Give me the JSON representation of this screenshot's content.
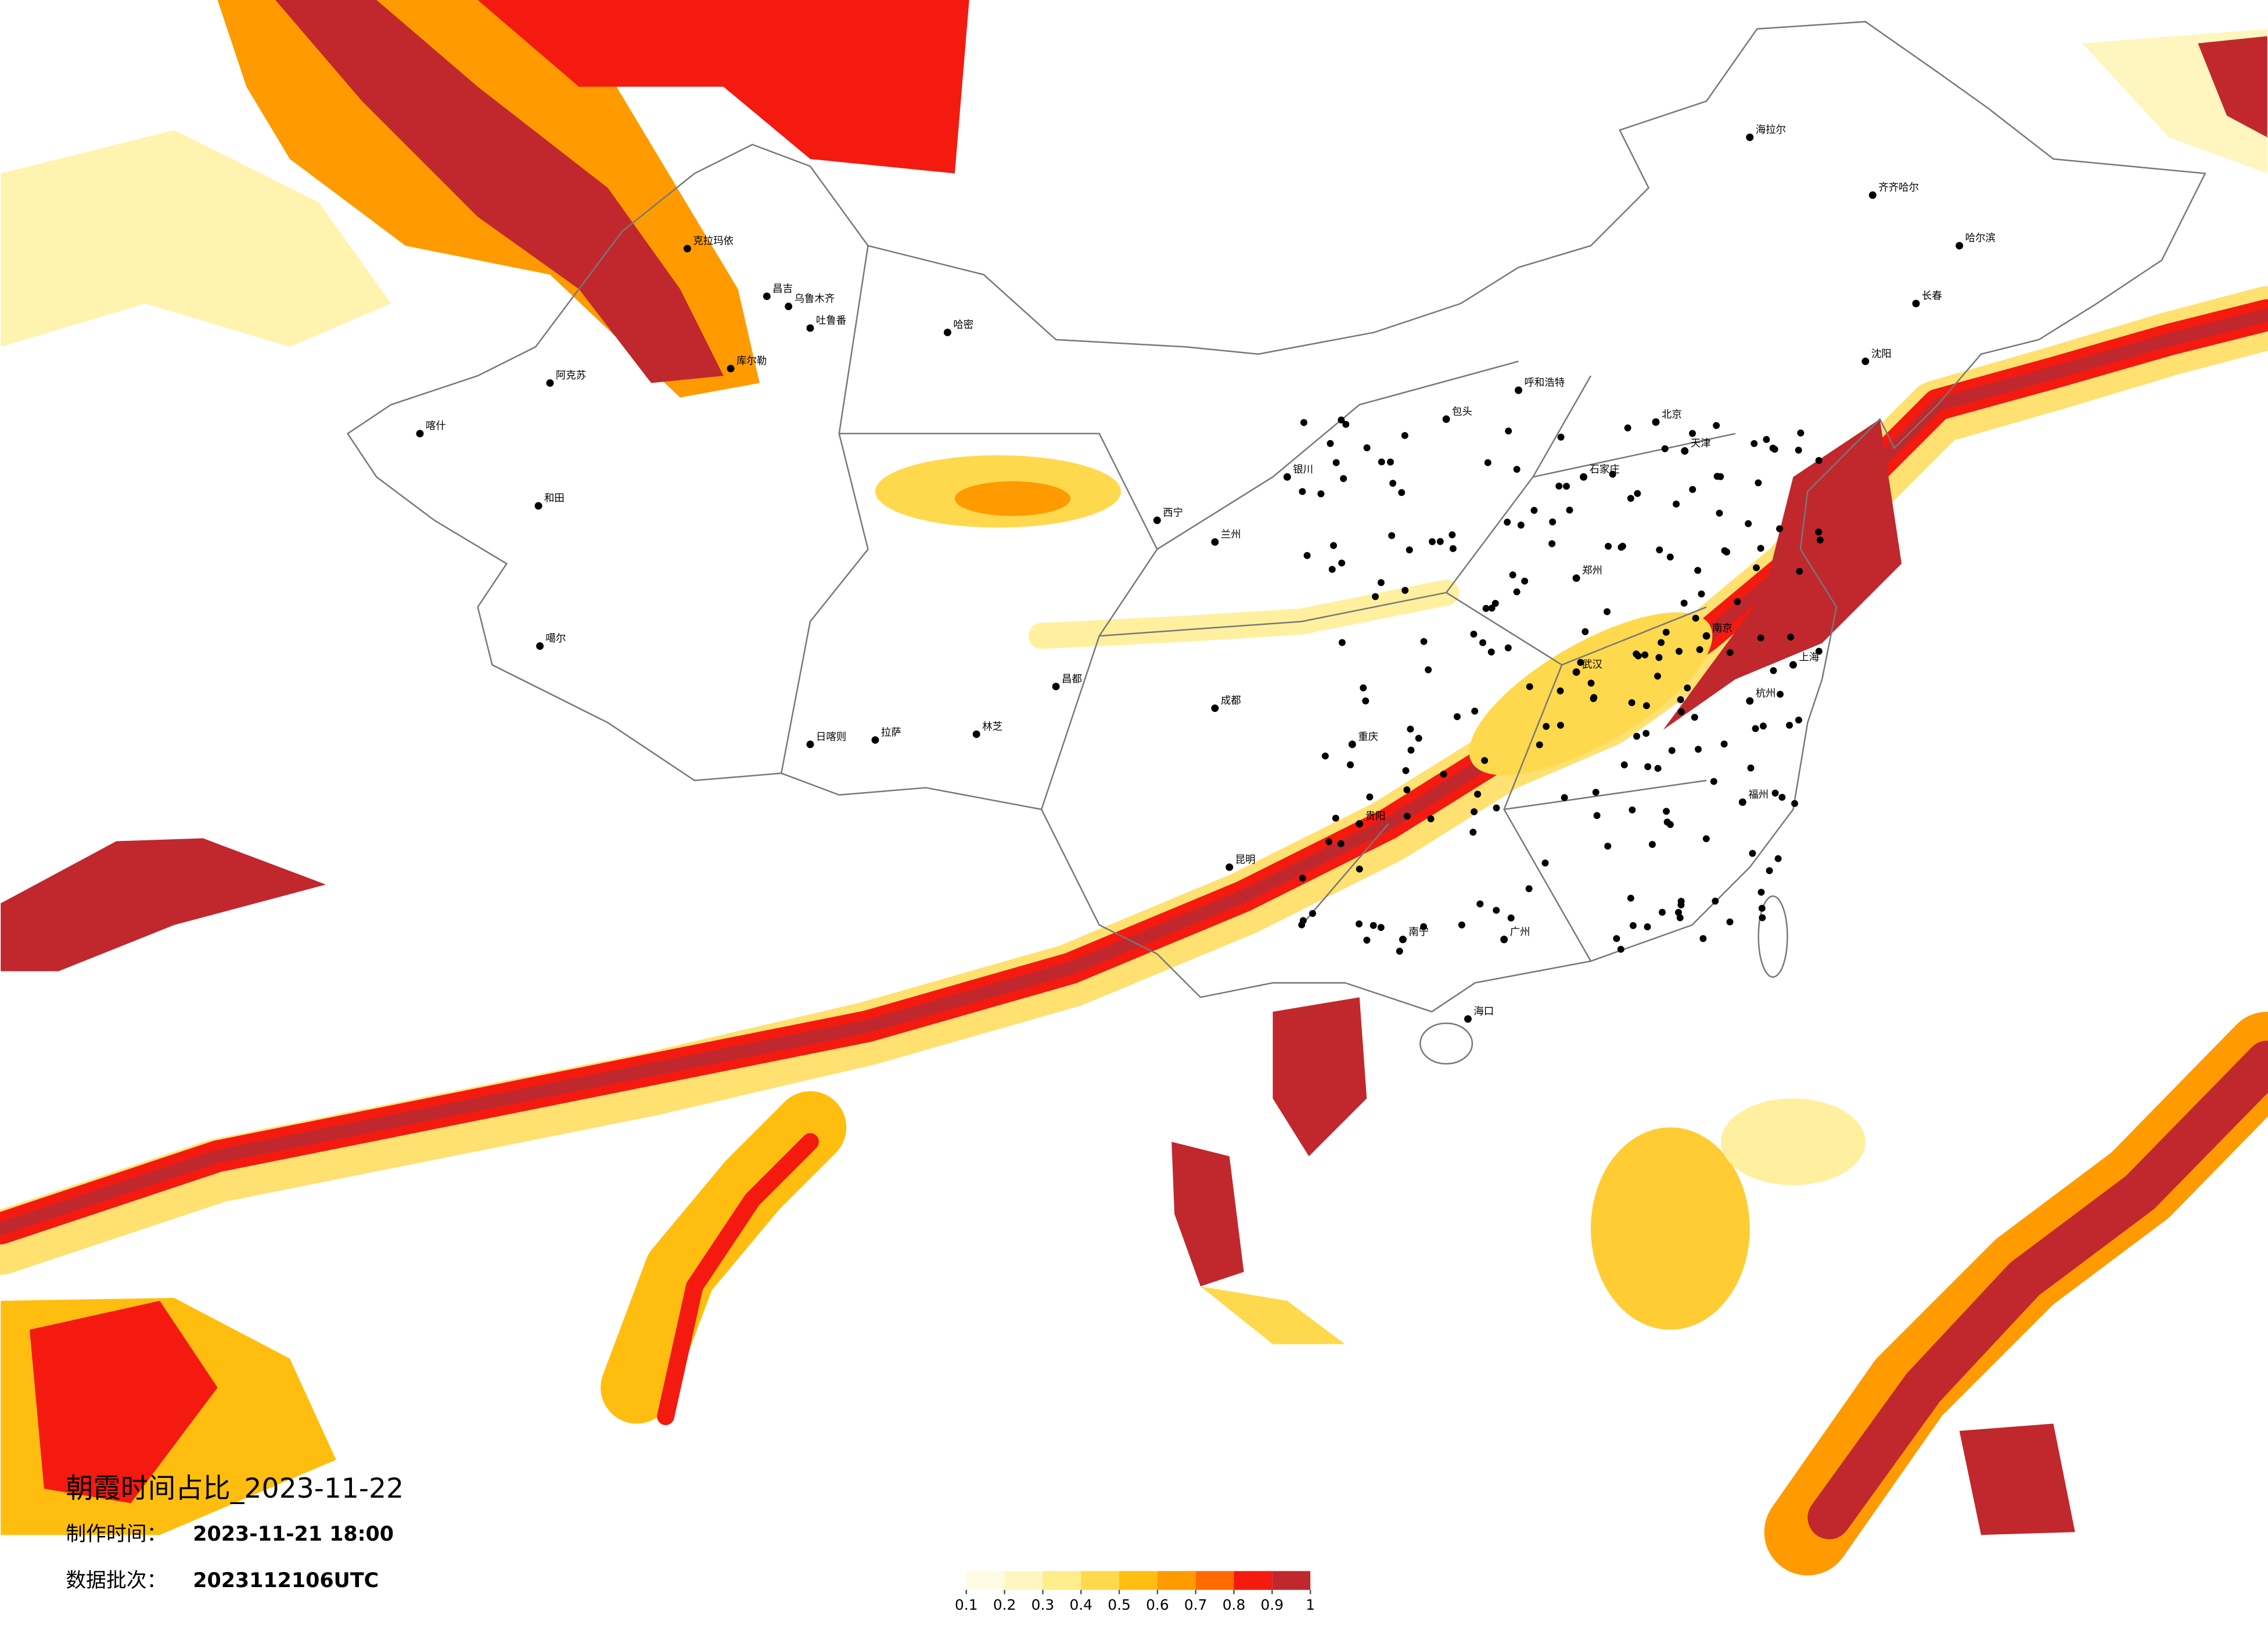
{
  "title": "朝霞时间占比_2023-11-22",
  "production_time": {
    "label": "制作时间：",
    "value": "2023-11-21 18:00"
  },
  "data_batch": {
    "label": "数据批次：",
    "value": "2023112106UTC"
  },
  "colorbar": {
    "ticks": [
      0.1,
      0.2,
      0.3,
      0.4,
      0.5,
      0.6,
      0.7,
      0.8,
      0.9,
      1
    ],
    "colors": [
      "#fffbe3",
      "#fff5bf",
      "#ffec8a",
      "#ffd94d",
      "#ffbe0f",
      "#ff9a00",
      "#ff6a00",
      "#f41a10",
      "#c0282d"
    ]
  },
  "cities": [
    "克拉玛依",
    "昌吉",
    "乌鲁木齐",
    "吐鲁番",
    "哈密",
    "库尔勒",
    "阿克苏",
    "喀什",
    "和田",
    "噶尔",
    "日喀则",
    "拉萨",
    "林芝",
    "昌都",
    "海拉尔",
    "齐齐哈尔",
    "哈尔滨",
    "长春",
    "沈阳",
    "呼和浩特",
    "包头",
    "北京",
    "天津",
    "石家庄",
    "郑州",
    "银川",
    "兰州",
    "西宁",
    "成都",
    "重庆",
    "贵阳",
    "昆明",
    "南宁",
    "广州",
    "福州",
    "海口",
    "武汉",
    "南京",
    "上海",
    "杭州"
  ]
}
